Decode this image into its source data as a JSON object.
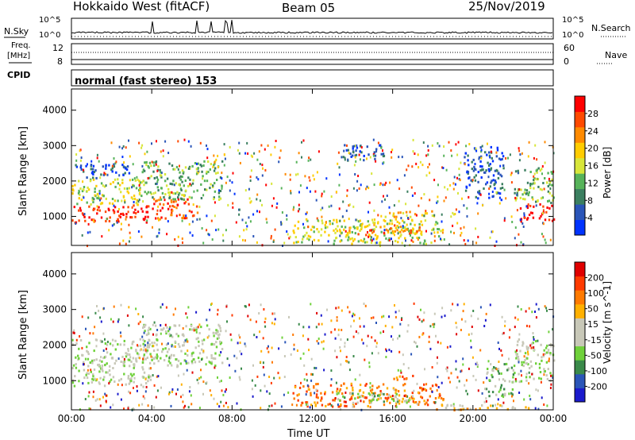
{
  "header": {
    "station": "Hokkaido West (fitACF)",
    "beam": "Beam 05",
    "date": "25/Nov/2019"
  },
  "top_panels": {
    "nsky_label": "N.Sky",
    "nsearch_label": "N.Search",
    "sky_ticks_right": [
      "10^5",
      "10^0"
    ],
    "sky_ticks_left": [
      "10^5",
      "10^0"
    ],
    "freq_label_line1": "Freq.",
    "freq_label_line2": "[MHz]",
    "freq_ticks": [
      "12",
      "8"
    ],
    "nave_label": "Nave",
    "nave_ticks": [
      "60",
      "0"
    ],
    "cpid_label": "CPID",
    "cpid_text": "normal (fast stereo) 153"
  },
  "colors": {
    "power_scale": [
      "#0033ff",
      "#2a55b8",
      "#3b7f60",
      "#57b35a",
      "#d8e63a",
      "#ffcc00",
      "#ff8a00",
      "#ff4a00",
      "#ff0000"
    ],
    "velocity_scale": [
      "#1a1acc",
      "#2a55b8",
      "#3a8a4a",
      "#6fd13a",
      "#c8c8b8",
      "#c8c8b8",
      "#ffb000",
      "#ff7a00",
      "#ff3a00",
      "#e00000"
    ]
  },
  "chart_data": [
    {
      "type": "heatmap",
      "name": "power",
      "xlabel": "Time UT",
      "ylabel": "Slant Range [km]",
      "colorbar_label": "Power [dB]",
      "xlim": [
        0,
        24
      ],
      "ylim": [
        180,
        4600
      ],
      "x_ticks": [
        "00:00",
        "04:00",
        "08:00",
        "12:00",
        "16:00",
        "20:00",
        "00:00"
      ],
      "y_ticks": [
        1000,
        2000,
        3000,
        4000
      ],
      "colorbar_ticks": [
        "28",
        "24",
        "20",
        "16",
        "12",
        "8",
        "4"
      ],
      "regions": [
        {
          "t0": 0.0,
          "t1": 4.0,
          "r0": 850,
          "r1": 1350,
          "level": 8
        },
        {
          "t0": 4.0,
          "t1": 6.3,
          "r0": 950,
          "r1": 1550,
          "level": 7
        },
        {
          "t0": 0.0,
          "t1": 3.5,
          "r0": 1350,
          "r1": 2100,
          "level": 4
        },
        {
          "t0": 3.5,
          "t1": 7.5,
          "r0": 1500,
          "r1": 2600,
          "level": 3
        },
        {
          "t0": 0.0,
          "t1": 3.0,
          "r0": 2100,
          "r1": 2500,
          "level": 1
        },
        {
          "t0": 11.0,
          "t1": 18.5,
          "r0": 250,
          "r1": 950,
          "level": 4
        },
        {
          "t0": 13.5,
          "t1": 17.5,
          "r0": 500,
          "r1": 800,
          "level": 6
        },
        {
          "t0": 15.5,
          "t1": 18.0,
          "r0": 1000,
          "r1": 1200,
          "level": 5
        },
        {
          "t0": 22.3,
          "t1": 24.0,
          "r0": 900,
          "r1": 1400,
          "level": 8
        },
        {
          "t0": 22.0,
          "t1": 24.0,
          "r0": 1400,
          "r1": 2400,
          "level": 3
        },
        {
          "t0": 13.5,
          "t1": 15.5,
          "r0": 2600,
          "r1": 3100,
          "level": 1
        },
        {
          "t0": 19.5,
          "t1": 21.5,
          "r0": 1500,
          "r1": 3000,
          "level": 1
        }
      ]
    },
    {
      "type": "heatmap",
      "name": "velocity",
      "xlabel": "Time UT",
      "ylabel": "Slant Range [km]",
      "colorbar_label": "Velocity [m s^-1]",
      "xlim": [
        0,
        24
      ],
      "ylim": [
        180,
        4600
      ],
      "x_ticks": [
        "00:00",
        "04:00",
        "08:00",
        "12:00",
        "16:00",
        "20:00",
        "00:00"
      ],
      "y_ticks": [
        1000,
        2000,
        3000,
        4000
      ],
      "colorbar_ticks": [
        "200",
        "100",
        "50",
        "15",
        "-15",
        "-50",
        "-100",
        "-200"
      ],
      "regions": [
        {
          "t0": 0.0,
          "t1": 4.0,
          "r0": 850,
          "r1": 2200,
          "level": 4
        },
        {
          "t0": 3.5,
          "t1": 7.5,
          "r0": 1400,
          "r1": 2600,
          "level": 4
        },
        {
          "t0": 11.0,
          "t1": 18.5,
          "r0": 300,
          "r1": 950,
          "level": 7
        },
        {
          "t0": 13.0,
          "t1": 17.0,
          "r0": 400,
          "r1": 700,
          "level": 3
        },
        {
          "t0": 15.5,
          "t1": 17.0,
          "r0": 1050,
          "r1": 1200,
          "level": 7
        },
        {
          "t0": 22.0,
          "t1": 24.0,
          "r0": 1000,
          "r1": 2200,
          "level": 4
        },
        {
          "t0": 20.5,
          "t1": 22.0,
          "r0": 600,
          "r1": 1500,
          "level": 3
        },
        {
          "t0": 18.0,
          "t1": 23.0,
          "r0": 200,
          "r1": 350,
          "level": 6
        }
      ]
    }
  ]
}
